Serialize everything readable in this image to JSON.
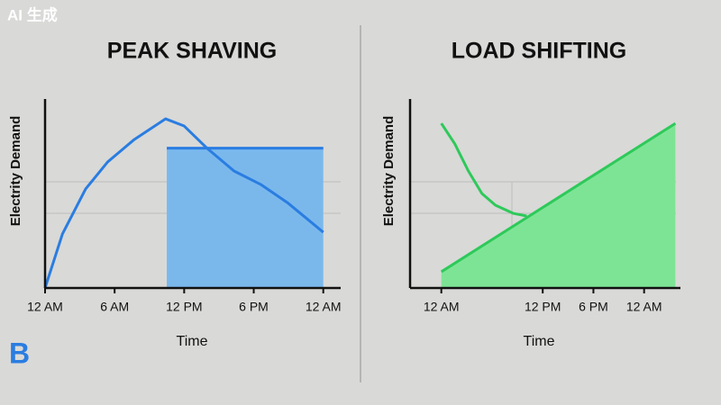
{
  "watermark": "AI 生成",
  "logo": "B",
  "chart_data": [
    {
      "type": "line",
      "title": "PEAK SHAVING",
      "y_label": "Electrity Demand",
      "x_label": "Time",
      "xlim": [
        0,
        25.5
      ],
      "ylim": [
        0,
        100
      ],
      "xticks": [
        {
          "value": 0,
          "label": "12 AM"
        },
        {
          "value": 6,
          "label": "6 AM"
        },
        {
          "value": 12,
          "label": "12 PM"
        },
        {
          "value": 18,
          "label": "6 PM"
        },
        {
          "value": 24,
          "label": "12 AM"
        }
      ],
      "series": [
        {
          "kind": "line",
          "color": "#2a7de1",
          "x": [
            0,
            1.5,
            3.5,
            5.4,
            7.7,
            10.4,
            12,
            14,
            16.3,
            18.6,
            20.9,
            24
          ],
          "values": [
            0,
            28.6,
            52.4,
            66.7,
            78.6,
            89.5,
            85.7,
            73.8,
            61.9,
            54.8,
            45.2,
            29.5
          ]
        },
        {
          "kind": "area",
          "color": "#7ab8ec",
          "x": [
            10.5,
            24
          ],
          "values": [
            74,
            74
          ]
        }
      ]
    },
    {
      "type": "line",
      "title": "LOAD SHIFTING",
      "y_label": "Electrity Demand",
      "x_label": "Time",
      "xlim": [
        -3.7,
        28.3
      ],
      "ylim": [
        0,
        100
      ],
      "xticks": [
        {
          "value": 0,
          "label": "12 AM"
        },
        {
          "value": 12,
          "label": "12 PM"
        },
        {
          "value": 18,
          "label": "6 PM"
        },
        {
          "value": 24,
          "label": "12 AM"
        }
      ],
      "series": [
        {
          "kind": "line",
          "color": "#2ec95a",
          "x": [
            0,
            1.6,
            3.2,
            4.8,
            6.4,
            8.5,
            10.1
          ],
          "values": [
            87.1,
            76.2,
            61.9,
            50,
            43.8,
            39.5,
            38.1
          ]
        },
        {
          "kind": "area",
          "color": "#7ee495",
          "x": [
            0,
            27.7
          ],
          "values": [
            8.6,
            87.1
          ]
        }
      ]
    }
  ]
}
